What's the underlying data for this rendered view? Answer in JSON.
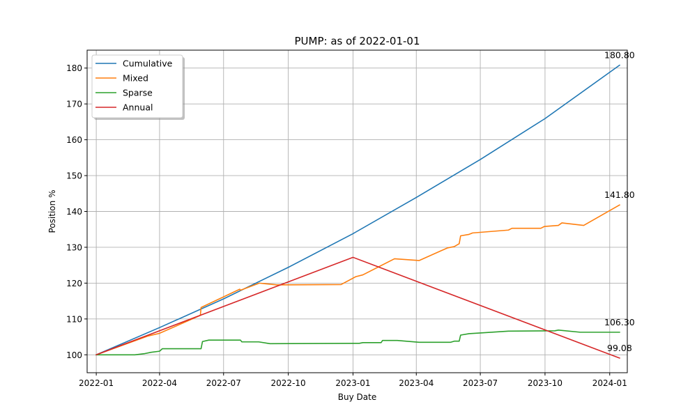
{
  "chart_data": {
    "type": "line",
    "title": "PUMP: as of 2022-01-01",
    "xlabel": "Buy Date",
    "ylabel": "Position %",
    "x_type": "date",
    "xlim": [
      "2021-12-19",
      "2024-01-26"
    ],
    "ylim": [
      95,
      185
    ],
    "x_ticks": [
      {
        "date": "2022-01-01",
        "label": "2022-01"
      },
      {
        "date": "2022-04-01",
        "label": "2022-04"
      },
      {
        "date": "2022-07-01",
        "label": "2022-07"
      },
      {
        "date": "2022-10-01",
        "label": "2022-10"
      },
      {
        "date": "2023-01-01",
        "label": "2023-01"
      },
      {
        "date": "2023-04-01",
        "label": "2023-04"
      },
      {
        "date": "2023-07-01",
        "label": "2023-07"
      },
      {
        "date": "2023-10-01",
        "label": "2023-10"
      },
      {
        "date": "2024-01-01",
        "label": "2024-01"
      }
    ],
    "y_ticks": [
      100,
      110,
      120,
      130,
      140,
      150,
      160,
      170,
      180
    ],
    "grid": true,
    "legend_position": "top-left",
    "series": [
      {
        "name": "Cumulative",
        "color": "#1f77b4",
        "points": [
          [
            "2022-01-01",
            100.0
          ],
          [
            "2022-04-01",
            107.6
          ],
          [
            "2022-07-01",
            115.6
          ],
          [
            "2022-10-01",
            124.4
          ],
          [
            "2023-01-01",
            133.8
          ],
          [
            "2023-04-01",
            143.9
          ],
          [
            "2023-07-01",
            154.5
          ],
          [
            "2023-10-01",
            165.9
          ],
          [
            "2024-01-15",
            180.8
          ]
        ]
      },
      {
        "name": "Mixed",
        "color": "#ff7f0e",
        "points": [
          [
            "2022-01-01",
            100.0
          ],
          [
            "2022-03-15",
            105.2
          ],
          [
            "2022-04-01",
            106.0
          ],
          [
            "2022-05-29",
            111.0
          ],
          [
            "2022-05-30",
            113.2
          ],
          [
            "2022-07-24",
            118.3
          ],
          [
            "2022-07-25",
            118.0
          ],
          [
            "2022-08-21",
            120.0
          ],
          [
            "2022-09-15",
            119.5
          ],
          [
            "2022-12-15",
            119.6
          ],
          [
            "2023-01-05",
            121.8
          ],
          [
            "2023-01-15",
            122.3
          ],
          [
            "2023-03-01",
            126.8
          ],
          [
            "2023-04-05",
            126.3
          ],
          [
            "2023-05-15",
            129.8
          ],
          [
            "2023-05-25",
            130.2
          ],
          [
            "2023-06-01",
            131.0
          ],
          [
            "2023-06-03",
            133.2
          ],
          [
            "2023-06-15",
            133.6
          ],
          [
            "2023-06-20",
            134.0
          ],
          [
            "2023-08-10",
            134.8
          ],
          [
            "2023-08-15",
            135.3
          ],
          [
            "2023-09-25",
            135.3
          ],
          [
            "2023-09-30",
            135.8
          ],
          [
            "2023-10-20",
            136.1
          ],
          [
            "2023-10-25",
            136.8
          ],
          [
            "2023-11-25",
            136.1
          ],
          [
            "2024-01-15",
            141.8
          ]
        ]
      },
      {
        "name": "Sparse",
        "color": "#2ca02c",
        "points": [
          [
            "2022-01-01",
            100.0
          ],
          [
            "2022-02-25",
            100.0
          ],
          [
            "2022-03-10",
            100.3
          ],
          [
            "2022-03-20",
            100.7
          ],
          [
            "2022-04-01",
            101.0
          ],
          [
            "2022-04-05",
            101.7
          ],
          [
            "2022-05-30",
            101.7
          ],
          [
            "2022-06-01",
            103.7
          ],
          [
            "2022-06-10",
            104.1
          ],
          [
            "2022-07-25",
            104.1
          ],
          [
            "2022-07-27",
            103.6
          ],
          [
            "2022-08-20",
            103.6
          ],
          [
            "2022-09-05",
            103.1
          ],
          [
            "2023-01-10",
            103.2
          ],
          [
            "2023-01-15",
            103.4
          ],
          [
            "2023-02-10",
            103.4
          ],
          [
            "2023-02-12",
            104.0
          ],
          [
            "2023-03-05",
            104.0
          ],
          [
            "2023-04-05",
            103.5
          ],
          [
            "2023-05-20",
            103.5
          ],
          [
            "2023-05-25",
            103.8
          ],
          [
            "2023-06-01",
            103.8
          ],
          [
            "2023-06-03",
            105.5
          ],
          [
            "2023-06-15",
            105.9
          ],
          [
            "2023-07-01",
            106.1
          ],
          [
            "2023-08-10",
            106.6
          ],
          [
            "2023-10-15",
            106.7
          ],
          [
            "2023-10-20",
            106.9
          ],
          [
            "2023-11-20",
            106.3
          ],
          [
            "2024-01-15",
            106.3
          ]
        ]
      },
      {
        "name": "Annual",
        "color": "#d62728",
        "points": [
          [
            "2022-01-01",
            100.0
          ],
          [
            "2023-01-01",
            127.2
          ],
          [
            "2024-01-15",
            99.08
          ]
        ]
      }
    ],
    "end_labels": [
      {
        "series": "Cumulative",
        "text": "180.80",
        "date": "2024-01-15",
        "y": 180.8
      },
      {
        "series": "Mixed",
        "text": "141.80",
        "date": "2024-01-15",
        "y": 141.8
      },
      {
        "series": "Sparse",
        "text": "106.30",
        "date": "2024-01-15",
        "y": 106.3
      },
      {
        "series": "Annual",
        "text": "99.08",
        "date": "2024-01-15",
        "y": 99.08
      }
    ]
  }
}
